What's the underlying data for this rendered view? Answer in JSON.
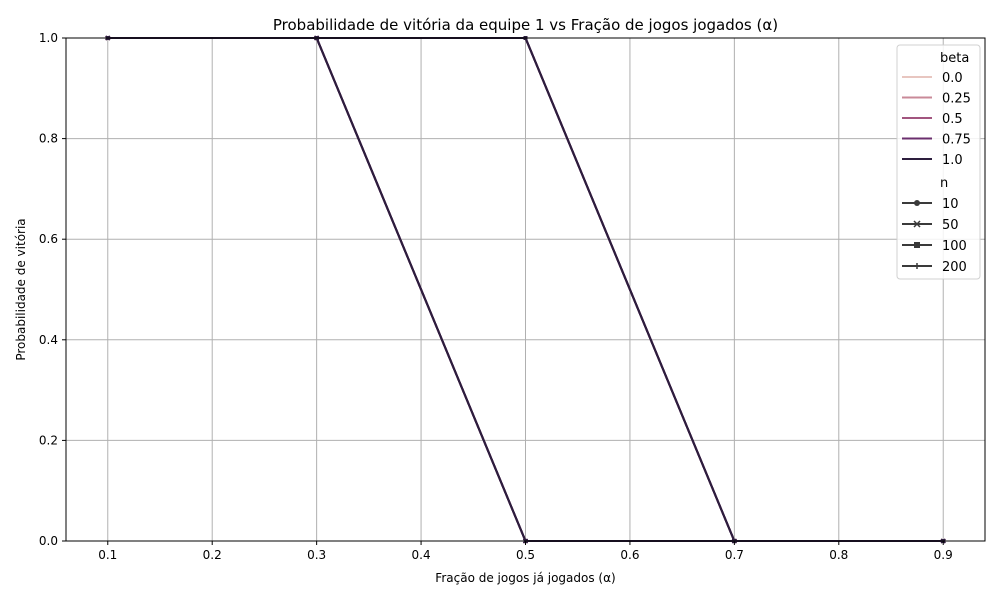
{
  "chart_data": {
    "type": "line",
    "title": "Probabilidade de vitória da equipe 1 vs Fração de jogos jogados (α)",
    "xlabel": "Fração de jogos já jogados (α)",
    "ylabel": "Probabilidade de vitória",
    "x": [
      0.1,
      0.3,
      0.5,
      0.7,
      0.9
    ],
    "xlim": [
      0.06,
      0.94
    ],
    "ylim": [
      0.0,
      1.0
    ],
    "xticks": [
      "0.1",
      "0.2",
      "0.3",
      "0.4",
      "0.5",
      "0.6",
      "0.7",
      "0.8",
      "0.9"
    ],
    "yticks": [
      "0.0",
      "0.2",
      "0.4",
      "0.6",
      "0.8",
      "1.0"
    ],
    "grid": true,
    "legend_position": "top-right",
    "legend_hue_title": "beta",
    "legend_style_title": "n",
    "series": [
      {
        "beta": "0.0",
        "color": "#e8c6c0",
        "n": "10",
        "marker": "circle",
        "values": [
          1,
          1,
          0,
          0,
          0
        ]
      },
      {
        "beta": "0.0",
        "color": "#e8c6c0",
        "n": "50",
        "marker": "x",
        "values": [
          1,
          1,
          0,
          0,
          0
        ]
      },
      {
        "beta": "0.0",
        "color": "#e8c6c0",
        "n": "100",
        "marker": "square",
        "values": [
          1,
          1,
          1,
          0,
          0
        ]
      },
      {
        "beta": "0.0",
        "color": "#e8c6c0",
        "n": "200",
        "marker": "plus",
        "values": [
          1,
          1,
          1,
          0,
          0
        ]
      },
      {
        "beta": "0.25",
        "color": "#c98a98",
        "n": "10",
        "marker": "circle",
        "values": [
          1,
          1,
          0,
          0,
          0
        ]
      },
      {
        "beta": "0.25",
        "color": "#c98a98",
        "n": "50",
        "marker": "x",
        "values": [
          1,
          1,
          0,
          0,
          0
        ]
      },
      {
        "beta": "0.25",
        "color": "#c98a98",
        "n": "100",
        "marker": "square",
        "values": [
          1,
          1,
          1,
          0,
          0
        ]
      },
      {
        "beta": "0.25",
        "color": "#c98a98",
        "n": "200",
        "marker": "plus",
        "values": [
          1,
          1,
          1,
          0,
          0
        ]
      },
      {
        "beta": "0.5",
        "color": "#a2557f",
        "n": "10",
        "marker": "circle",
        "values": [
          1,
          1,
          0,
          0,
          0
        ]
      },
      {
        "beta": "0.5",
        "color": "#a2557f",
        "n": "50",
        "marker": "x",
        "values": [
          1,
          1,
          0,
          0,
          0
        ]
      },
      {
        "beta": "0.5",
        "color": "#a2557f",
        "n": "100",
        "marker": "square",
        "values": [
          1,
          1,
          1,
          0,
          0
        ]
      },
      {
        "beta": "0.5",
        "color": "#a2557f",
        "n": "200",
        "marker": "plus",
        "values": [
          1,
          1,
          1,
          0,
          0
        ]
      },
      {
        "beta": "0.75",
        "color": "#6b2f6e",
        "n": "10",
        "marker": "circle",
        "values": [
          1,
          1,
          0,
          0,
          0
        ]
      },
      {
        "beta": "0.75",
        "color": "#6b2f6e",
        "n": "50",
        "marker": "x",
        "values": [
          1,
          1,
          0,
          0,
          0
        ]
      },
      {
        "beta": "0.75",
        "color": "#6b2f6e",
        "n": "100",
        "marker": "square",
        "values": [
          1,
          1,
          1,
          0,
          0
        ]
      },
      {
        "beta": "0.75",
        "color": "#6b2f6e",
        "n": "200",
        "marker": "plus",
        "values": [
          1,
          1,
          1,
          0,
          0
        ]
      },
      {
        "beta": "1.0",
        "color": "#2d1e3e",
        "n": "10",
        "marker": "circle",
        "values": [
          1,
          1,
          0,
          0,
          0
        ]
      },
      {
        "beta": "1.0",
        "color": "#2d1e3e",
        "n": "50",
        "marker": "x",
        "values": [
          1,
          1,
          0,
          0,
          0
        ]
      },
      {
        "beta": "1.0",
        "color": "#2d1e3e",
        "n": "100",
        "marker": "square",
        "values": [
          1,
          1,
          1,
          0,
          0
        ]
      },
      {
        "beta": "1.0",
        "color": "#2d1e3e",
        "n": "200",
        "marker": "plus",
        "values": [
          1,
          1,
          1,
          0,
          0
        ]
      }
    ],
    "legend_hue_items": [
      {
        "label": "0.0",
        "color": "#e8c6c0"
      },
      {
        "label": "0.25",
        "color": "#c98a98"
      },
      {
        "label": "0.5",
        "color": "#a2557f"
      },
      {
        "label": "0.75",
        "color": "#6b2f6e"
      },
      {
        "label": "1.0",
        "color": "#2d1e3e"
      }
    ],
    "legend_style_items": [
      {
        "label": "10",
        "marker": "circle"
      },
      {
        "label": "50",
        "marker": "x"
      },
      {
        "label": "100",
        "marker": "square"
      },
      {
        "label": "200",
        "marker": "plus"
      }
    ],
    "legend_style_color": "#3a3a3a"
  }
}
